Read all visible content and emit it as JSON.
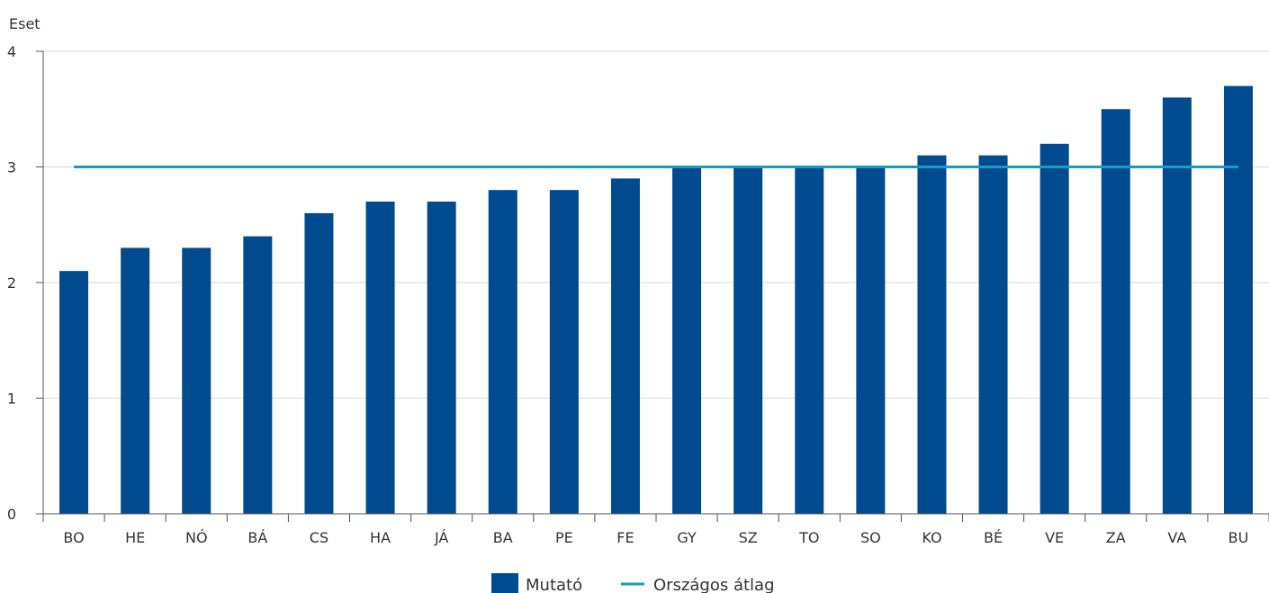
{
  "chart_data": {
    "type": "bar",
    "ylabel": "Eset",
    "xlabel": "",
    "ylim": [
      0,
      4
    ],
    "yticks": [
      0,
      1,
      2,
      3,
      4
    ],
    "grid": true,
    "legend_position": "bottom",
    "categories": [
      "BO",
      "HE",
      "NÓ",
      "BÁ",
      "CS",
      "HA",
      "JÁ",
      "BA",
      "PE",
      "FE",
      "GY",
      "SZ",
      "TO",
      "SO",
      "KO",
      "BÉ",
      "VE",
      "ZA",
      "VA",
      "BU"
    ],
    "series": [
      {
        "name": "Mutató",
        "type": "bar",
        "color": "#004a8f",
        "values": [
          2.1,
          2.3,
          2.3,
          2.4,
          2.6,
          2.7,
          2.7,
          2.8,
          2.8,
          2.9,
          3.0,
          3.0,
          3.0,
          3.0,
          3.1,
          3.1,
          3.2,
          3.5,
          3.6,
          3.7
        ]
      },
      {
        "name": "Országos átlag",
        "type": "line",
        "color": "#1a9bc4",
        "values": [
          3.0,
          3.0,
          3.0,
          3.0,
          3.0,
          3.0,
          3.0,
          3.0,
          3.0,
          3.0,
          3.0,
          3.0,
          3.0,
          3.0,
          3.0,
          3.0,
          3.0,
          3.0,
          3.0,
          3.0
        ]
      }
    ]
  }
}
